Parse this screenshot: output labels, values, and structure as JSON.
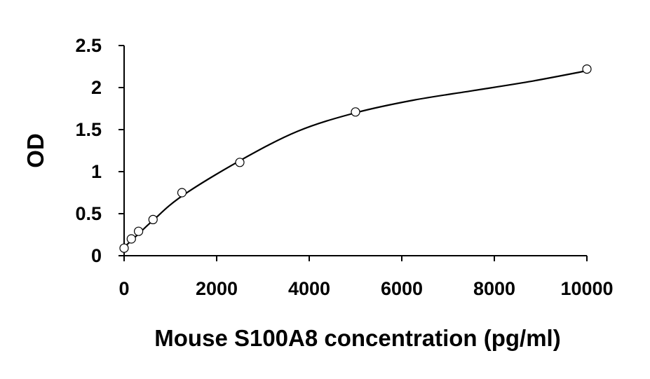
{
  "chart_data": {
    "type": "scatter",
    "title": "",
    "xlabel": "Mouse S100A8 concentration (pg/ml)",
    "ylabel": "OD",
    "xlim": [
      0,
      10000
    ],
    "ylim": [
      0,
      2.5
    ],
    "x_ticks": [
      "0",
      "2000",
      "4000",
      "6000",
      "8000",
      "10000"
    ],
    "y_ticks": [
      "0",
      "0.5",
      "1",
      "1.5",
      "2",
      "2.5"
    ],
    "grid": false,
    "legend": "none",
    "series": [
      {
        "x": [
          0,
          156,
          312,
          625,
          1250,
          2500,
          5000,
          10000
        ],
        "y": [
          0.09,
          0.2,
          0.29,
          0.43,
          0.75,
          1.11,
          1.71,
          2.22
        ]
      }
    ],
    "fit_curve": {
      "x": [
        0,
        156,
        312,
        625,
        1250,
        2500,
        3750,
        5000,
        6250,
        7500,
        8750,
        10000
      ],
      "y": [
        0.1,
        0.18,
        0.26,
        0.42,
        0.71,
        1.13,
        1.48,
        1.7,
        1.85,
        1.96,
        2.07,
        2.2
      ]
    },
    "colors": {
      "marker_fill": "#ffffff",
      "marker_stroke": "#000000",
      "line": "#000000",
      "text": "#000000"
    }
  }
}
